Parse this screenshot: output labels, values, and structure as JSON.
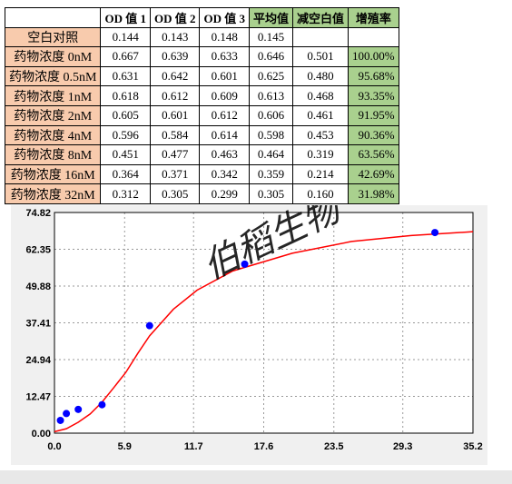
{
  "table": {
    "header": [
      null,
      "OD 值 1",
      "OD 值 2",
      "OD 值 3",
      "平均值",
      "减空白值",
      "增殖率"
    ],
    "rows": [
      [
        "空白对照",
        "0.144",
        "0.143",
        "0.148",
        "0.145",
        null,
        null
      ],
      [
        "药物浓度 0nM",
        "0.667",
        "0.639",
        "0.633",
        "0.646",
        "0.501",
        "100.00%"
      ],
      [
        "药物浓度 0.5nM",
        "0.631",
        "0.642",
        "0.601",
        "0.625",
        "0.480",
        "95.68%"
      ],
      [
        "药物浓度 1nM",
        "0.618",
        "0.612",
        "0.609",
        "0.613",
        "0.468",
        "93.35%"
      ],
      [
        "药物浓度 2nM",
        "0.605",
        "0.601",
        "0.612",
        "0.606",
        "0.461",
        "91.95%"
      ],
      [
        "药物浓度 4nM",
        "0.596",
        "0.584",
        "0.614",
        "0.598",
        "0.453",
        "90.36%"
      ],
      [
        "药物浓度 8nM",
        "0.451",
        "0.477",
        "0.463",
        "0.464",
        "0.319",
        "63.56%"
      ],
      [
        "药物浓度 16nM",
        "0.364",
        "0.371",
        "0.342",
        "0.359",
        "0.214",
        "42.69%"
      ],
      [
        "药物浓度 32nM",
        "0.312",
        "0.305",
        "0.299",
        "0.305",
        "0.160",
        "31.98%"
      ]
    ]
  },
  "chart_data": {
    "type": "scatter",
    "watermark": "伯稻生物",
    "xlim": [
      0,
      35.2
    ],
    "xticks": [
      {
        "value": 0,
        "label": "0.0"
      },
      5.9,
      11.7,
      17.6,
      23.5,
      29.3,
      35.2
    ],
    "ylim": [
      0,
      74.82
    ],
    "yticks": [
      {
        "value": 0,
        "label": "0.00"
      },
      12.47,
      24.94,
      37.41,
      49.88,
      62.35,
      74.82
    ],
    "grid": true,
    "series": [
      {
        "type": "line",
        "color": "#ff0000",
        "x": [
          0,
          1,
          2,
          3,
          4,
          5,
          6,
          7,
          8,
          10,
          12,
          15,
          20,
          25,
          30,
          35.2
        ],
        "values": [
          0.5,
          1.5,
          3.7,
          6.5,
          10.5,
          15.5,
          20.6,
          27,
          33,
          42,
          48.5,
          55,
          61,
          65,
          67,
          68.3
        ]
      },
      {
        "type": "scatter",
        "color": "#0000ff",
        "x": [
          0.5,
          1,
          2,
          4,
          8,
          16,
          32
        ],
        "values": [
          4.32,
          6.65,
          8.05,
          9.64,
          36.44,
          57.31,
          68.02
        ]
      }
    ]
  }
}
